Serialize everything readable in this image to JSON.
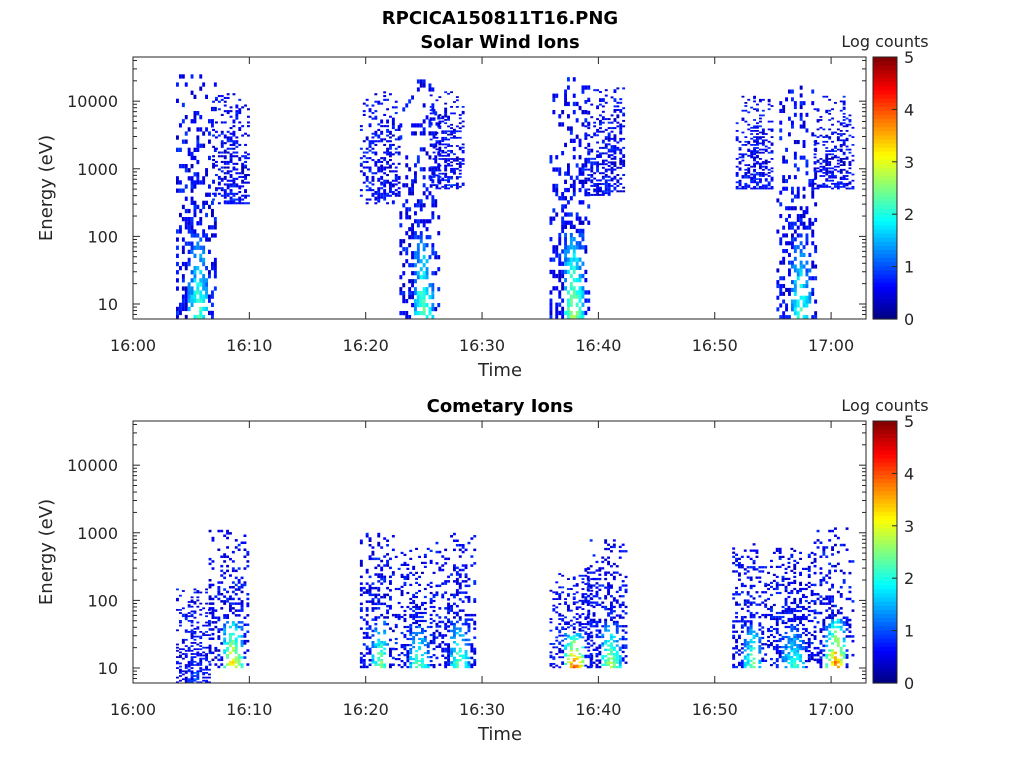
{
  "figure": {
    "title": "RPCICA150811T16.PNG"
  },
  "chart_data": [
    {
      "type": "heatmap",
      "title": "Solar Wind Ions",
      "xlabel": "Time",
      "ylabel": "Energy (eV)",
      "y_scale": "log",
      "ylim": [
        6,
        45000
      ],
      "xlim": [
        "16:00",
        "17:03"
      ],
      "x_ticks": [
        "16:00",
        "16:10",
        "16:20",
        "16:30",
        "16:40",
        "16:50",
        "17:00"
      ],
      "y_ticks": [
        "10",
        "100",
        "1000",
        "10000"
      ],
      "colorbar": {
        "label": "Log counts",
        "range": [
          0,
          5
        ],
        "ticks": [
          "0",
          "1",
          "2",
          "3",
          "4",
          "5"
        ],
        "colormap": "jet"
      },
      "bursts": [
        {
          "start_min": 3.7,
          "end_min": 7.0,
          "emin": 6,
          "emax": 25000,
          "peak_log": 2.2
        },
        {
          "start_min": 6.8,
          "end_min": 10.0,
          "emin": 300,
          "emax": 14000,
          "peak_log": 0.6
        },
        {
          "start_min": 19.5,
          "end_min": 23.0,
          "emin": 300,
          "emax": 14000,
          "peak_log": 0.6
        },
        {
          "start_min": 22.9,
          "end_min": 26.4,
          "emin": 6,
          "emax": 21000,
          "peak_log": 2.3
        },
        {
          "start_min": 25.5,
          "end_min": 28.5,
          "emin": 500,
          "emax": 14000,
          "peak_log": 0.6
        },
        {
          "start_min": 35.8,
          "end_min": 39.3,
          "emin": 6,
          "emax": 26000,
          "peak_log": 2.7
        },
        {
          "start_min": 38.8,
          "end_min": 42.3,
          "emin": 400,
          "emax": 16000,
          "peak_log": 0.6
        },
        {
          "start_min": 51.8,
          "end_min": 55.0,
          "emin": 500,
          "emax": 12000,
          "peak_log": 0.6
        },
        {
          "start_min": 55.3,
          "end_min": 58.8,
          "emin": 6,
          "emax": 17000,
          "peak_log": 2.1
        },
        {
          "start_min": 58.5,
          "end_min": 61.8,
          "emin": 500,
          "emax": 12000,
          "peak_log": 0.6
        }
      ]
    },
    {
      "type": "heatmap",
      "title": "Cometary Ions",
      "xlabel": "Time",
      "ylabel": "Energy (eV)",
      "y_scale": "log",
      "ylim": [
        6,
        45000
      ],
      "xlim": [
        "16:00",
        "17:03"
      ],
      "x_ticks": [
        "16:00",
        "16:10",
        "16:20",
        "16:30",
        "16:40",
        "16:50",
        "17:00"
      ],
      "y_ticks": [
        "10",
        "100",
        "1000",
        "10000"
      ],
      "colorbar": {
        "label": "Log counts",
        "range": [
          0,
          5
        ],
        "ticks": [
          "0",
          "1",
          "2",
          "3",
          "4",
          "5"
        ],
        "colormap": "jet"
      },
      "bursts": [
        {
          "start_min": 3.7,
          "end_min": 6.5,
          "emin": 6,
          "emax": 150,
          "peak_log": 0.8
        },
        {
          "start_min": 6.5,
          "end_min": 10.0,
          "emin": 10,
          "emax": 1200,
          "peak_log": 3.3
        },
        {
          "start_min": 19.5,
          "end_min": 22.5,
          "emin": 10,
          "emax": 1000,
          "peak_log": 2.5
        },
        {
          "start_min": 22.5,
          "end_min": 26.0,
          "emin": 10,
          "emax": 600,
          "peak_log": 2.3
        },
        {
          "start_min": 26.0,
          "end_min": 29.5,
          "emin": 10,
          "emax": 1000,
          "peak_log": 2.3
        },
        {
          "start_min": 35.8,
          "end_min": 39.5,
          "emin": 10,
          "emax": 300,
          "peak_log": 4.0
        },
        {
          "start_min": 39.0,
          "end_min": 42.5,
          "emin": 10,
          "emax": 800,
          "peak_log": 2.7
        },
        {
          "start_min": 51.5,
          "end_min": 54.5,
          "emin": 10,
          "emax": 700,
          "peak_log": 2.4
        },
        {
          "start_min": 54.5,
          "end_min": 58.5,
          "emin": 10,
          "emax": 600,
          "peak_log": 2.0
        },
        {
          "start_min": 58.5,
          "end_min": 61.8,
          "emin": 10,
          "emax": 1200,
          "peak_log": 3.8
        }
      ]
    }
  ]
}
